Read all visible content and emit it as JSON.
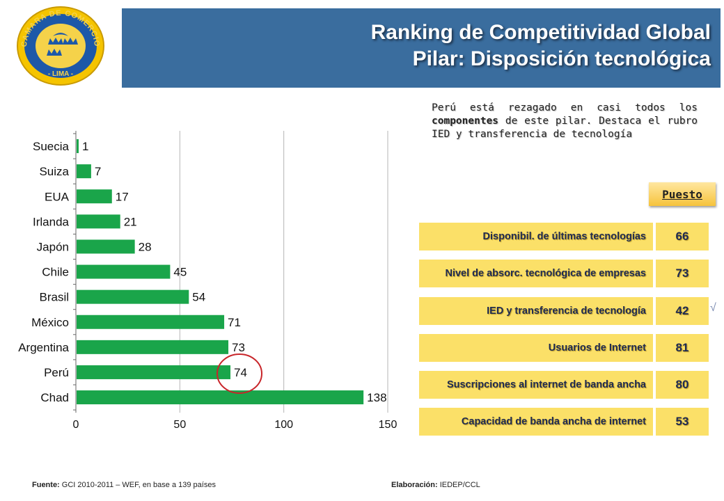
{
  "logo": {
    "ring_text": "CAMARA DE COMERCIO",
    "bottom_text": "- LIMA -",
    "colors": {
      "ring": "#f5c400",
      "field": "#1d58a8",
      "inner": "#f5d24a"
    }
  },
  "header": {
    "line1": "Ranking de Competitividad Global",
    "line2": "Pilar: Disposición tecnológica",
    "background": "#3a6d9e"
  },
  "note": {
    "part1": "Perú está rezagado en casi todos los",
    "bold": "componentes",
    "part2": "de este pilar. Destaca el rubro IED y transferencia de tecnología"
  },
  "chart_data": {
    "type": "bar",
    "orientation": "horizontal",
    "categories": [
      "Suecia",
      "Suiza",
      "EUA",
      "Irlanda",
      "Japón",
      "Chile",
      "Brasil",
      "México",
      "Argentina",
      "Perú",
      "Chad"
    ],
    "values": [
      1,
      7,
      17,
      21,
      28,
      45,
      54,
      71,
      73,
      74,
      138
    ],
    "data_labels": [
      "1",
      "7",
      "17",
      "21",
      "28",
      "45",
      "54",
      "71",
      "73",
      "74",
      "138"
    ],
    "xlim": [
      0,
      150
    ],
    "x_ticks": [
      "0",
      "50",
      "100",
      "150"
    ],
    "grid": true,
    "bar_color": "#1aa54a",
    "highlight": {
      "category": "Perú",
      "color": "#c8252a"
    }
  },
  "table": {
    "header": "Puesto",
    "rows": [
      {
        "label": "Disponibil. de últimas tecnologías",
        "value": "66"
      },
      {
        "label": "Nivel de absorc. tecnológica de  empresas",
        "value": "73"
      },
      {
        "label": "IED y transferencia de tecnología",
        "value": "42"
      },
      {
        "label": "Usuarios de Internet",
        "value": "81"
      },
      {
        "label": "Suscripciones al internet de banda ancha",
        "value": "80"
      },
      {
        "label": "Capacidad de banda ancha de internet",
        "value": "53"
      }
    ],
    "check_mark": "√",
    "colors": {
      "cell": "#fbe068",
      "text": "#1e2a52"
    }
  },
  "footer": {
    "source_label": "Fuente:",
    "source_text": "GCI 2010-2011  – WEF, en base a 139 países",
    "author_label": "Elaboración:",
    "author_text": "IEDEP/CCL"
  }
}
